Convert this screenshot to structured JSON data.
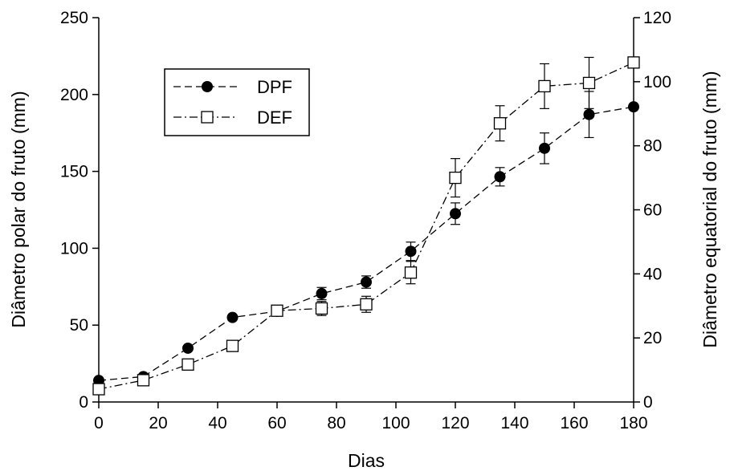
{
  "chart_data": {
    "type": "line",
    "title": "",
    "xlabel": "Dias",
    "ylabel_left": "Diâmetro polar do fruto (mm)",
    "ylabel_right": "Diâmetro equatorial do fruto (mm)",
    "xlim": [
      0,
      180
    ],
    "ylim_left": [
      0,
      250
    ],
    "ylim_right": [
      0,
      120
    ],
    "x_ticks": [
      "0",
      "20",
      "40",
      "60",
      "80",
      "100",
      "120",
      "140",
      "160",
      "180"
    ],
    "y_left_ticks": [
      "0",
      "50",
      "100",
      "150",
      "200",
      "250"
    ],
    "y_right_ticks": [
      "0",
      "20",
      "40",
      "60",
      "80",
      "100",
      "120"
    ],
    "grid": false,
    "legend_position": "upper-left",
    "series": [
      {
        "name": "DPF",
        "axis": "left",
        "marker": "filled-circle",
        "line_style": "dashed",
        "color": "#000000",
        "x": [
          0,
          15,
          30,
          45,
          60,
          75,
          90,
          105,
          120,
          135,
          150,
          165,
          180
        ],
        "values": [
          14,
          16.5,
          35,
          55,
          59,
          70.5,
          78,
          98,
          122.5,
          146.5,
          165,
          187,
          192
        ],
        "error": [
          0,
          0,
          0,
          0,
          0,
          4,
          4,
          6,
          7,
          6,
          10,
          15,
          0
        ]
      },
      {
        "name": "DEF",
        "axis": "right",
        "marker": "open-square",
        "line_style": "dash-dot",
        "color": "#000000",
        "x": [
          0,
          15,
          30,
          45,
          60,
          75,
          90,
          105,
          120,
          135,
          150,
          165,
          180
        ],
        "values": [
          4,
          6.8,
          11.7,
          17.5,
          28.5,
          29.2,
          30.5,
          40.4,
          70,
          87,
          98.6,
          99.6,
          106
        ],
        "error": [
          0,
          0,
          0,
          0,
          0,
          2.2,
          2.5,
          3.5,
          6,
          5.5,
          7,
          8,
          0
        ]
      }
    ]
  }
}
